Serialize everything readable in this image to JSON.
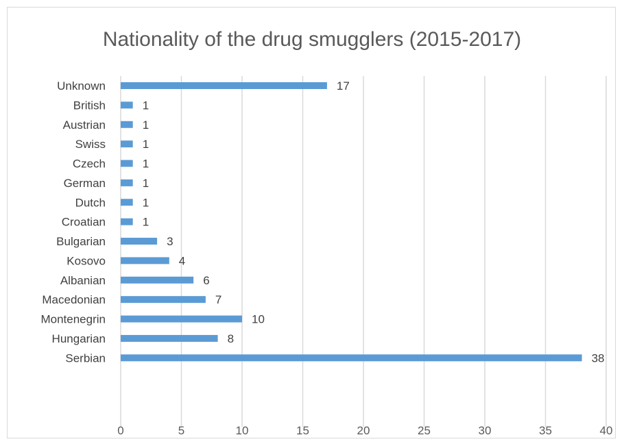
{
  "chart_data": {
    "type": "bar",
    "orientation": "horizontal",
    "title": "Nationality of the drug smugglers (2015-2017)",
    "xlabel": "",
    "ylabel": "",
    "categories": [
      "Unknown",
      "British",
      "Austrian",
      "Swiss",
      "Czech",
      "German",
      "Dutch",
      "Croatian",
      "Bulgarian",
      "Kosovo",
      "Albanian",
      "Macedonian",
      "Montenegrin",
      "Hungarian",
      "Serbian"
    ],
    "values": [
      17,
      1,
      1,
      1,
      1,
      1,
      1,
      1,
      3,
      4,
      6,
      7,
      10,
      8,
      38
    ],
    "data_labels": [
      "17",
      "1",
      "1",
      "1",
      "1",
      "1",
      "1",
      "1",
      "3",
      "4",
      "6",
      "7",
      "10",
      "8",
      "38"
    ],
    "xlim": [
      0,
      40
    ],
    "x_ticks": [
      0,
      5,
      10,
      15,
      20,
      25,
      30,
      35,
      40
    ],
    "x_tick_labels": [
      "0",
      "5",
      "10",
      "15",
      "20",
      "25",
      "30",
      "35",
      "40"
    ],
    "grid": "vertical",
    "legend": "none",
    "colors": {
      "bar": "#5b9bd5",
      "grid": "#d9d9d9",
      "text": "#404040",
      "title": "#595959"
    }
  }
}
